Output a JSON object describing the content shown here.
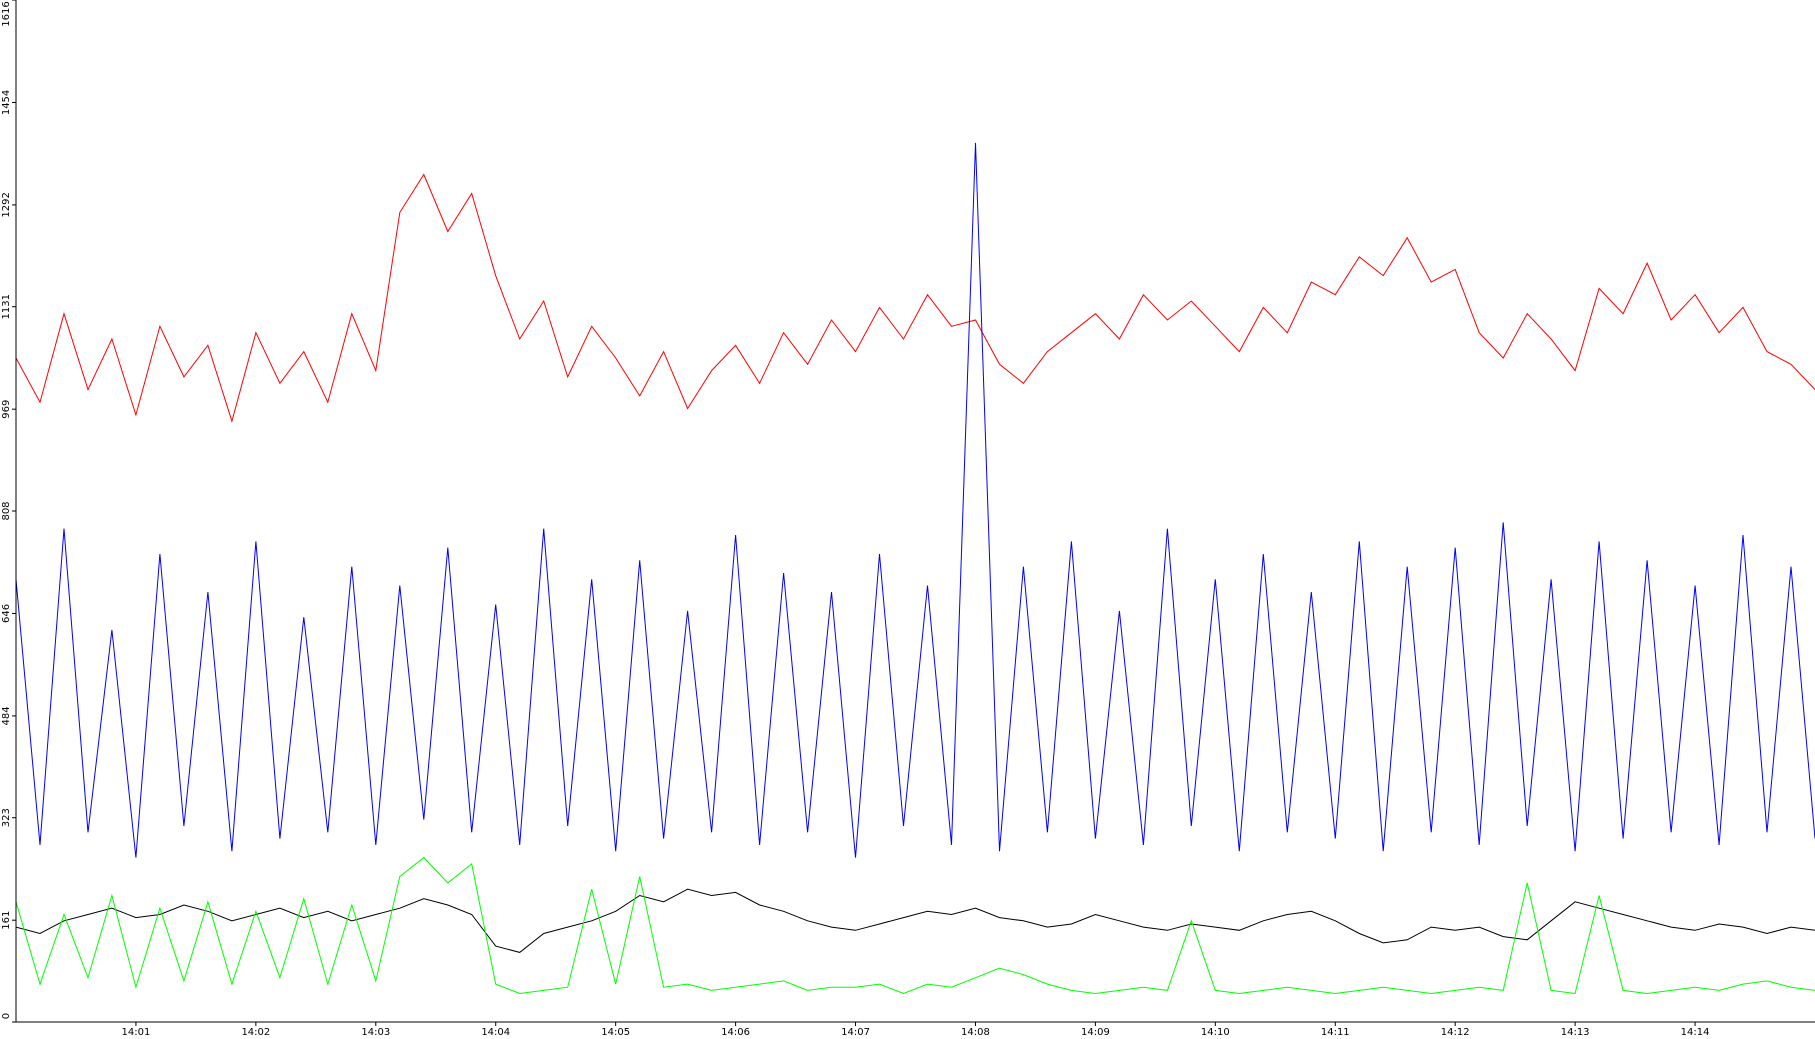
{
  "chart_data": {
    "type": "line",
    "x": [
      840,
      840.2,
      840.4,
      840.6,
      840.8,
      841,
      841.2,
      841.4,
      841.6,
      841.8,
      842,
      842.2,
      842.4,
      842.6,
      842.8,
      843,
      843.2,
      843.4,
      843.6,
      843.8,
      844,
      844.2,
      844.4,
      844.6,
      844.8,
      845,
      845.2,
      845.4,
      845.6,
      845.8,
      846,
      846.2,
      846.4,
      846.6,
      846.8,
      847,
      847.2,
      847.4,
      847.6,
      847.8,
      848,
      848.2,
      848.4,
      848.6,
      848.8,
      849,
      849.2,
      849.4,
      849.6,
      849.8,
      850,
      850.2,
      850.4,
      850.6,
      850.8,
      851,
      851.2,
      851.4,
      851.6,
      851.8,
      852,
      852.2,
      852.4,
      852.6,
      852.8,
      853,
      853.2,
      853.4,
      853.6,
      853.8,
      854,
      854.2,
      854.4,
      854.6,
      854.8,
      855
    ],
    "series": [
      {
        "color": "#ff0000",
        "values": [
          1050,
          980,
          1120,
          1000,
          1080,
          960,
          1100,
          1020,
          1070,
          950,
          1090,
          1010,
          1060,
          980,
          1120,
          1030,
          1280,
          1340,
          1250,
          1310,
          1180,
          1080,
          1140,
          1020,
          1100,
          1050,
          990,
          1060,
          970,
          1030,
          1070,
          1010,
          1090,
          1040,
          1110,
          1060,
          1130,
          1080,
          1150,
          1100,
          1110,
          1040,
          1010,
          1060,
          1090,
          1120,
          1080,
          1150,
          1110,
          1140,
          1100,
          1060,
          1130,
          1090,
          1170,
          1150,
          1210,
          1180,
          1240,
          1170,
          1190,
          1090,
          1050,
          1120,
          1080,
          1030,
          1160,
          1120,
          1200,
          1110,
          1150,
          1090,
          1130,
          1060,
          1040,
          1000
        ]
      },
      {
        "color": "#0000ff",
        "values": [
          700,
          280,
          780,
          300,
          620,
          260,
          740,
          310,
          680,
          270,
          760,
          290,
          640,
          300,
          720,
          280,
          690,
          320,
          750,
          300,
          660,
          280,
          780,
          310,
          700,
          270,
          730,
          290,
          650,
          300,
          770,
          280,
          710,
          300,
          680,
          260,
          740,
          310,
          690,
          280,
          1390,
          270,
          720,
          300,
          760,
          290,
          650,
          280,
          780,
          310,
          700,
          270,
          740,
          300,
          680,
          290,
          760,
          270,
          720,
          300,
          750,
          280,
          790,
          310,
          700,
          270,
          760,
          290,
          730,
          300,
          690,
          280,
          770,
          300,
          720,
          290
        ]
      },
      {
        "color": "#000000",
        "values": [
          150,
          140,
          160,
          170,
          180,
          165,
          170,
          185,
          175,
          160,
          170,
          180,
          165,
          175,
          160,
          170,
          180,
          195,
          185,
          170,
          120,
          110,
          140,
          150,
          160,
          175,
          200,
          190,
          210,
          200,
          205,
          185,
          175,
          160,
          150,
          145,
          155,
          165,
          175,
          170,
          180,
          165,
          160,
          150,
          155,
          170,
          160,
          150,
          145,
          155,
          150,
          145,
          160,
          170,
          175,
          160,
          140,
          125,
          130,
          150,
          145,
          150,
          135,
          130,
          160,
          190,
          180,
          170,
          160,
          150,
          145,
          155,
          150,
          140,
          150,
          145
        ]
      },
      {
        "color": "#00ff00",
        "values": [
          190,
          60,
          170,
          70,
          200,
          55,
          180,
          65,
          190,
          60,
          175,
          70,
          195,
          60,
          185,
          65,
          230,
          260,
          220,
          250,
          60,
          45,
          50,
          55,
          210,
          60,
          230,
          55,
          60,
          50,
          55,
          60,
          65,
          50,
          55,
          55,
          60,
          45,
          60,
          55,
          70,
          85,
          75,
          60,
          50,
          45,
          50,
          55,
          50,
          160,
          50,
          45,
          50,
          55,
          50,
          45,
          50,
          55,
          50,
          45,
          50,
          55,
          50,
          220,
          50,
          45,
          200,
          50,
          45,
          50,
          55,
          50,
          60,
          65,
          55,
          50
        ]
      }
    ],
    "xlim": [
      840,
      855
    ],
    "xticks": [
      {
        "value": 841,
        "label": "14:01"
      },
      {
        "value": 842,
        "label": "14:02"
      },
      {
        "value": 843,
        "label": "14:03"
      },
      {
        "value": 844,
        "label": "14:04"
      },
      {
        "value": 845,
        "label": "14:05"
      },
      {
        "value": 846,
        "label": "14:06"
      },
      {
        "value": 847,
        "label": "14:07"
      },
      {
        "value": 848,
        "label": "14:08"
      },
      {
        "value": 849,
        "label": "14:09"
      },
      {
        "value": 850,
        "label": "14:10"
      },
      {
        "value": 851,
        "label": "14:11"
      },
      {
        "value": 852,
        "label": "14:12"
      },
      {
        "value": 853,
        "label": "14:13"
      },
      {
        "value": 854,
        "label": "14:14"
      }
    ],
    "ylim": [
      0,
      1616
    ],
    "yticks": [
      0,
      161,
      323,
      484,
      646,
      808,
      969,
      1131,
      1292,
      1454,
      1616
    ]
  }
}
